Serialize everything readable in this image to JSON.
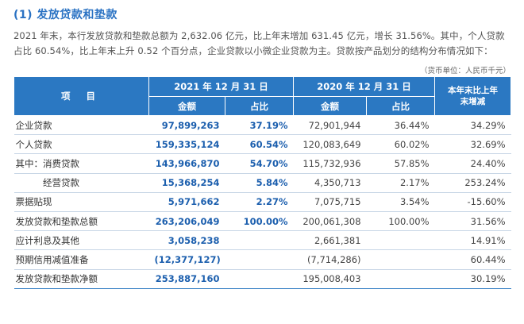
{
  "section": {
    "heading": "(1) 发放贷款和垫款",
    "paragraph": "2021 年末，本行发放贷款和垫款总额为 2,632.06 亿元，比上年末增加 631.45 亿元，增长 31.56%。其中，个人贷款占比 60.54%，比上年末上升 0.52 个百分点，企业贷款以小微企业贷款为主。贷款按产品划分的结构分布情况如下：",
    "unit_note": "（货币单位：人民币千元）"
  },
  "table": {
    "header": {
      "item": "项 目",
      "period_current": "2021 年 12 月 31 日",
      "period_previous": "2020 年 12 月 31 日",
      "change_title": "本年末比上年末增减",
      "amount": "金额",
      "share": "占比"
    },
    "rows": [
      {
        "label": "企业贷款",
        "cur_amount": "97,899,263",
        "cur_share": "37.19%",
        "prev_amount": "72,901,944",
        "prev_share": "36.44%",
        "change": "34.29%"
      },
      {
        "label": "个人贷款",
        "cur_amount": "159,335,124",
        "cur_share": "60.54%",
        "prev_amount": "120,083,649",
        "prev_share": "60.02%",
        "change": "32.69%"
      },
      {
        "label": "其中：消费贷款",
        "cur_amount": "143,966,870",
        "cur_share": "54.70%",
        "prev_amount": "115,732,936",
        "prev_share": "57.85%",
        "change": "24.40%"
      },
      {
        "label": "　　　经营贷款",
        "cur_amount": "15,368,254",
        "cur_share": "5.84%",
        "prev_amount": "4,350,713",
        "prev_share": "2.17%",
        "change": "253.24%"
      },
      {
        "label": "票据贴现",
        "cur_amount": "5,971,662",
        "cur_share": "2.27%",
        "prev_amount": "7,075,715",
        "prev_share": "3.54%",
        "change": "-15.60%"
      },
      {
        "label": "发放贷款和垫款总额",
        "cur_amount": "263,206,049",
        "cur_share": "100.00%",
        "prev_amount": "200,061,308",
        "prev_share": "100.00%",
        "change": "31.56%"
      },
      {
        "label": "应计利息及其他",
        "cur_amount": "3,058,238",
        "cur_share": "",
        "prev_amount": "2,661,381",
        "prev_share": "",
        "change": "14.91%"
      },
      {
        "label": "预期信用减值准备",
        "cur_amount": "(12,377,127)",
        "cur_share": "",
        "prev_amount": "(7,714,286)",
        "prev_share": "",
        "change": "60.44%"
      },
      {
        "label": "发放贷款和垫款净额",
        "cur_amount": "253,887,160",
        "cur_share": "",
        "prev_amount": "195,008,403",
        "prev_share": "",
        "change": "30.19%"
      }
    ]
  },
  "colors": {
    "accent": "#2a72c3",
    "header_fill": "#2b78c2",
    "current_value": "#1c5fae",
    "row_divider": "#c8d6e6"
  }
}
